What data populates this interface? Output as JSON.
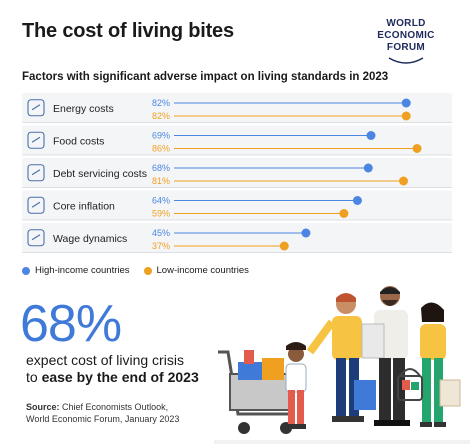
{
  "title": "The cost of living bites",
  "logo": {
    "lines": [
      "WORLD",
      "ECONOMIC",
      "FORUM"
    ]
  },
  "subtitle": "Factors with significant adverse impact on living standards in 2023",
  "chart_data": {
    "type": "dot",
    "categories": [
      "Energy costs",
      "Food costs",
      "Debt servicing costs",
      "Core inflation",
      "Wage dynamics"
    ],
    "category_icons": [
      "energy-icon",
      "food-icon",
      "debt-icon",
      "inflation-icon",
      "wage-icon"
    ],
    "series": [
      {
        "name": "High-income countries",
        "color": "#4b86e2",
        "values": [
          82,
          69,
          68,
          64,
          45
        ],
        "labels": [
          "82%",
          "69%",
          "68%",
          "64%",
          "45%"
        ]
      },
      {
        "name": "Low-income countries",
        "color": "#f0a020",
        "values": [
          82,
          86,
          81,
          59,
          37
        ],
        "labels": [
          "82%",
          "86%",
          "81%",
          "59%",
          "37%"
        ]
      }
    ],
    "xlim": [
      0,
      100
    ],
    "legend_position": "bottom-left"
  },
  "headline": {
    "value": "68%",
    "text_plain": "expect cost of living crisis",
    "text_line2_prefix": "to ",
    "text_bold": "ease by the end of 2023"
  },
  "source": {
    "label": "Source:",
    "line1": "Chief Economists Outlook,",
    "line2": "World Economic Forum, January 2023"
  }
}
